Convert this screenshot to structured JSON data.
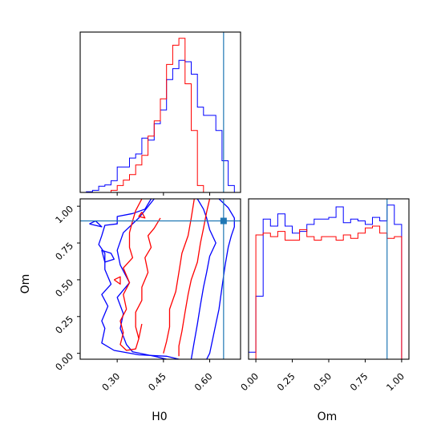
{
  "chart_data": [
    {
      "type": "histogram",
      "panel": "H0-marginal",
      "xlim": [
        0.18,
        0.7
      ],
      "truth": 0.645,
      "bins": [
        0.18,
        0.2,
        0.22,
        0.24,
        0.26,
        0.28,
        0.3,
        0.32,
        0.34,
        0.36,
        0.38,
        0.4,
        0.42,
        0.44,
        0.46,
        0.48,
        0.5,
        0.52,
        0.54,
        0.56,
        0.58,
        0.6,
        0.62,
        0.64,
        0.66,
        0.68,
        0.7
      ],
      "series": [
        {
          "color": "#0000ff",
          "counts": [
            0,
            0.5,
            1.5,
            4.5,
            5.5,
            8.5,
            18.5,
            18.5,
            25,
            28,
            39.5,
            38,
            50,
            60,
            82,
            90,
            96,
            95,
            86,
            62,
            56,
            56,
            45,
            23,
            5,
            0
          ]
        },
        {
          "color": "#ff0000",
          "counts": [
            0,
            0,
            0,
            0,
            0,
            1.5,
            5,
            9,
            13,
            20,
            27,
            41,
            52,
            68,
            93,
            107,
            112,
            79,
            45,
            5,
            0,
            0,
            0,
            0,
            0,
            0
          ]
        }
      ]
    },
    {
      "type": "contour",
      "panel": "H0-Om-2D",
      "xlabel": "H0",
      "ylabel": "Om",
      "xlim": [
        0.18,
        0.7
      ],
      "ylim": [
        -0.04,
        1.05
      ],
      "xticks": [
        "0.30",
        "0.45",
        "0.60"
      ],
      "xtick_values": [
        0.3,
        0.45,
        0.6
      ],
      "yticks": [
        "0.00",
        "0.25",
        "0.50",
        "0.75",
        "1.00"
      ],
      "ytick_values": [
        0.0,
        0.25,
        0.5,
        0.75,
        1.0
      ],
      "truth": {
        "x": 0.645,
        "y": 0.9
      },
      "series": [
        {
          "color": "#0000ff",
          "level": "outer",
          "points": [
            [
              0.41,
              1.05
            ],
            [
              0.39,
              0.98
            ],
            [
              0.35,
              0.95
            ],
            [
              0.3,
              0.93
            ],
            [
              0.3,
              0.88
            ],
            [
              0.26,
              0.87
            ],
            [
              0.25,
              0.8
            ],
            [
              0.24,
              0.74
            ],
            [
              0.26,
              0.68
            ],
            [
              0.26,
              0.57
            ],
            [
              0.28,
              0.47
            ],
            [
              0.25,
              0.4
            ],
            [
              0.27,
              0.32
            ],
            [
              0.25,
              0.22
            ],
            [
              0.26,
              0.17
            ],
            [
              0.25,
              0.07
            ],
            [
              0.29,
              0.02
            ],
            [
              0.37,
              -0.01
            ],
            [
              0.46,
              -0.02
            ],
            [
              0.5,
              -0.04
            ]
          ]
        },
        {
          "color": "#0000ff",
          "level": "outer-right",
          "points": [
            [
              0.63,
              1.05
            ],
            [
              0.66,
              0.99
            ],
            [
              0.68,
              0.92
            ],
            [
              0.68,
              0.86
            ],
            [
              0.67,
              0.8
            ],
            [
              0.66,
              0.72
            ],
            [
              0.65,
              0.6
            ],
            [
              0.64,
              0.45
            ],
            [
              0.63,
              0.3
            ],
            [
              0.62,
              0.2
            ],
            [
              0.61,
              0.1
            ],
            [
              0.6,
              0.0
            ],
            [
              0.59,
              -0.04
            ]
          ]
        },
        {
          "color": "#0000ff",
          "level": "inner-left",
          "points": [
            [
              0.42,
              1.05
            ],
            [
              0.37,
              0.92
            ],
            [
              0.32,
              0.82
            ],
            [
              0.3,
              0.7
            ],
            [
              0.31,
              0.6
            ],
            [
              0.34,
              0.48
            ],
            [
              0.3,
              0.38
            ],
            [
              0.32,
              0.27
            ],
            [
              0.31,
              0.17
            ],
            [
              0.33,
              0.06
            ],
            [
              0.35,
              0.01
            ],
            [
              0.42,
              -0.02
            ],
            [
              0.46,
              -0.04
            ]
          ]
        },
        {
          "color": "#0000ff",
          "level": "inner-right",
          "points": [
            [
              0.56,
              1.05
            ],
            [
              0.58,
              0.98
            ],
            [
              0.59,
              0.92
            ],
            [
              0.6,
              0.84
            ],
            [
              0.62,
              0.75
            ],
            [
              0.6,
              0.66
            ],
            [
              0.59,
              0.55
            ],
            [
              0.58,
              0.45
            ],
            [
              0.57,
              0.33
            ],
            [
              0.56,
              0.2
            ],
            [
              0.55,
              0.08
            ],
            [
              0.54,
              -0.04
            ]
          ]
        },
        {
          "color": "#0000ff",
          "level": "island",
          "points": [
            [
              0.26,
              0.62
            ],
            [
              0.29,
              0.64
            ],
            [
              0.28,
              0.68
            ],
            [
              0.25,
              0.7
            ],
            [
              0.26,
              0.62
            ]
          ]
        },
        {
          "color": "#0000ff",
          "level": "island",
          "points": [
            [
              0.21,
              0.88
            ],
            [
              0.23,
              0.9
            ],
            [
              0.25,
              0.86
            ],
            [
              0.21,
              0.88
            ]
          ]
        },
        {
          "color": "#ff0000",
          "level": "outer-left",
          "points": [
            [
              0.38,
              1.05
            ],
            [
              0.36,
              0.97
            ],
            [
              0.35,
              0.9
            ],
            [
              0.34,
              0.82
            ],
            [
              0.34,
              0.72
            ],
            [
              0.35,
              0.65
            ],
            [
              0.32,
              0.58
            ],
            [
              0.34,
              0.48
            ],
            [
              0.32,
              0.4
            ],
            [
              0.33,
              0.3
            ],
            [
              0.31,
              0.22
            ],
            [
              0.32,
              0.14
            ],
            [
              0.31,
              0.06
            ],
            [
              0.33,
              0.02
            ],
            [
              0.36,
              0.03
            ],
            [
              0.37,
              0.1
            ],
            [
              0.38,
              0.2
            ]
          ]
        },
        {
          "color": "#ff0000",
          "level": "outer-right",
          "points": [
            [
              0.6,
              1.05
            ],
            [
              0.59,
              0.96
            ],
            [
              0.58,
              0.85
            ],
            [
              0.57,
              0.75
            ],
            [
              0.56,
              0.62
            ],
            [
              0.54,
              0.5
            ],
            [
              0.53,
              0.4
            ],
            [
              0.52,
              0.28
            ],
            [
              0.51,
              0.15
            ],
            [
              0.5,
              0.05
            ],
            [
              0.5,
              -0.02
            ]
          ]
        },
        {
          "color": "#ff0000",
          "level": "inner",
          "points": [
            [
              0.55,
              1.05
            ],
            [
              0.54,
              0.92
            ],
            [
              0.53,
              0.8
            ],
            [
              0.51,
              0.68
            ],
            [
              0.5,
              0.55
            ],
            [
              0.49,
              0.42
            ],
            [
              0.47,
              0.3
            ],
            [
              0.47,
              0.18
            ],
            [
              0.46,
              0.08
            ],
            [
              0.45,
              0.0
            ]
          ]
        },
        {
          "color": "#ff0000",
          "level": "inner-left",
          "points": [
            [
              0.44,
              0.92
            ],
            [
              0.42,
              0.85
            ],
            [
              0.4,
              0.8
            ],
            [
              0.41,
              0.72
            ],
            [
              0.39,
              0.65
            ],
            [
              0.4,
              0.55
            ],
            [
              0.38,
              0.45
            ],
            [
              0.38,
              0.36
            ],
            [
              0.36,
              0.28
            ],
            [
              0.36,
              0.18
            ],
            [
              0.37,
              0.1
            ]
          ]
        },
        {
          "color": "#ff0000",
          "level": "island",
          "points": [
            [
              0.29,
              0.5
            ],
            [
              0.31,
              0.52
            ],
            [
              0.31,
              0.47
            ],
            [
              0.29,
              0.5
            ]
          ]
        },
        {
          "color": "#ff0000",
          "level": "island",
          "points": [
            [
              0.38,
              0.96
            ],
            [
              0.39,
              0.92
            ],
            [
              0.37,
              0.93
            ],
            [
              0.38,
              0.96
            ]
          ]
        }
      ]
    },
    {
      "type": "histogram",
      "panel": "Om-marginal",
      "xlabel": "Om",
      "xlim": [
        -0.05,
        1.05
      ],
      "xticks": [
        "0.00",
        "0.25",
        "0.50",
        "0.75",
        "1.00"
      ],
      "xtick_values": [
        0.0,
        0.25,
        0.5,
        0.75,
        1.0
      ],
      "truth": 0.9,
      "bins": [
        -0.05,
        0.0,
        0.05,
        0.1,
        0.15,
        0.2,
        0.25,
        0.3,
        0.35,
        0.4,
        0.45,
        0.5,
        0.55,
        0.6,
        0.65,
        0.7,
        0.75,
        0.8,
        0.85,
        0.9,
        0.95,
        1.0,
        1.05
      ],
      "series": [
        {
          "color": "#0000ff",
          "counts": [
            4,
            36,
            80,
            76,
            83,
            76,
            72,
            73,
            77,
            80,
            80,
            81,
            87,
            78,
            80,
            79,
            77,
            81,
            79,
            88,
            77,
            0
          ]
        },
        {
          "color": "#ff0000",
          "counts": [
            0,
            71,
            72,
            70,
            73,
            68,
            68,
            74,
            70,
            68,
            70,
            70,
            68,
            71,
            69,
            72,
            75,
            76,
            72,
            69,
            70,
            0
          ]
        }
      ]
    }
  ],
  "labels": {
    "x_h0": "H0",
    "x_om": "Om",
    "y_om": "Om"
  }
}
